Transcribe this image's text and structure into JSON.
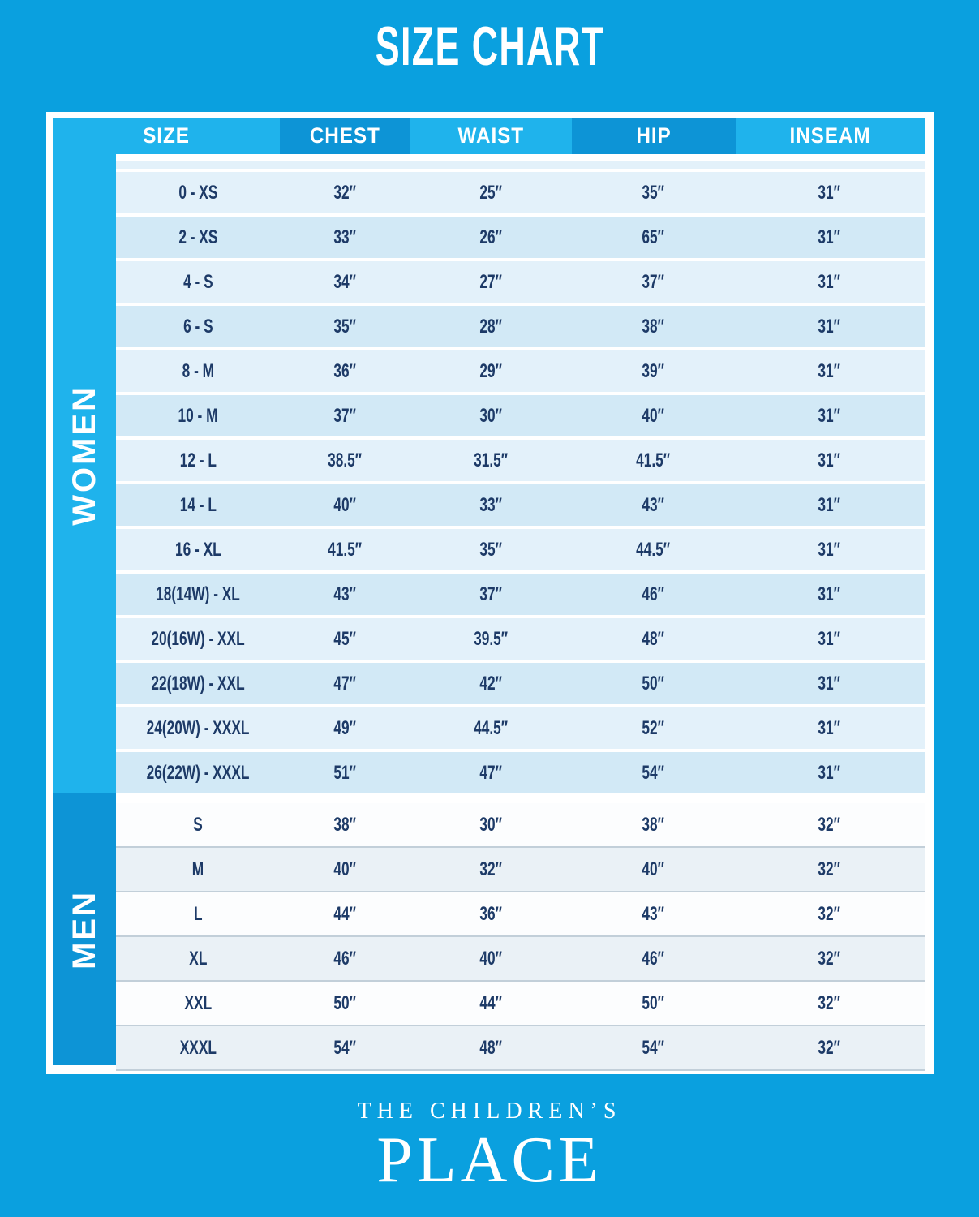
{
  "title": "SIZE CHART",
  "chart_data": {
    "type": "table",
    "title": "SIZE CHART",
    "columns": [
      "SIZE",
      "CHEST",
      "WAIST",
      "HIP",
      "INSEAM"
    ],
    "sections": [
      {
        "label": "WOMEN",
        "rows": [
          [
            "0 - XS",
            "32″",
            "25″",
            "35″",
            "31″"
          ],
          [
            "2 - XS",
            "33″",
            "26″",
            "65″",
            "31″"
          ],
          [
            "4 - S",
            "34″",
            "27″",
            "37″",
            "31″"
          ],
          [
            "6 - S",
            "35″",
            "28″",
            "38″",
            "31″"
          ],
          [
            "8 - M",
            "36″",
            "29″",
            "39″",
            "31″"
          ],
          [
            "10 - M",
            "37″",
            "30″",
            "40″",
            "31″"
          ],
          [
            "12 - L",
            "38.5″",
            "31.5″",
            "41.5″",
            "31″"
          ],
          [
            "14 - L",
            "40″",
            "33″",
            "43″",
            "31″"
          ],
          [
            "16 - XL",
            "41.5″",
            "35″",
            "44.5″",
            "31″"
          ],
          [
            "18(14W) - XL",
            "43″",
            "37″",
            "46″",
            "31″"
          ],
          [
            "20(16W) - XXL",
            "45″",
            "39.5″",
            "48″",
            "31″"
          ],
          [
            "22(18W) - XXL",
            "47″",
            "42″",
            "50″",
            "31″"
          ],
          [
            "24(20W) - XXXL",
            "49″",
            "44.5″",
            "52″",
            "31″"
          ],
          [
            "26(22W) - XXXL",
            "51″",
            "47″",
            "54″",
            "31″"
          ]
        ]
      },
      {
        "label": "MEN",
        "rows": [
          [
            "S",
            "38″",
            "30″",
            "38″",
            "32″"
          ],
          [
            "M",
            "40″",
            "32″",
            "40″",
            "32″"
          ],
          [
            "L",
            "44″",
            "36″",
            "43″",
            "32″"
          ],
          [
            "XL",
            "46″",
            "40″",
            "46″",
            "32″"
          ],
          [
            "XXL",
            "50″",
            "44″",
            "50″",
            "32″"
          ],
          [
            "XXXL",
            "54″",
            "48″",
            "54″",
            "32″"
          ]
        ]
      }
    ]
  },
  "brand": {
    "line1": "THE CHILDREN’S",
    "line2": "PLACE"
  },
  "colors": {
    "background": "#0AA0DF",
    "accent_light": "#1FB3EC",
    "accent_dark": "#0D94D6",
    "women_row_light": "#E3F1FA",
    "women_row_dark": "#D2E9F6",
    "men_row_light": "#FCFDFE",
    "men_row_alt": "#EAF1F6",
    "text_navy": "#1D3A67",
    "separator": "#C2CFD9",
    "white": "#FFFFFF"
  }
}
